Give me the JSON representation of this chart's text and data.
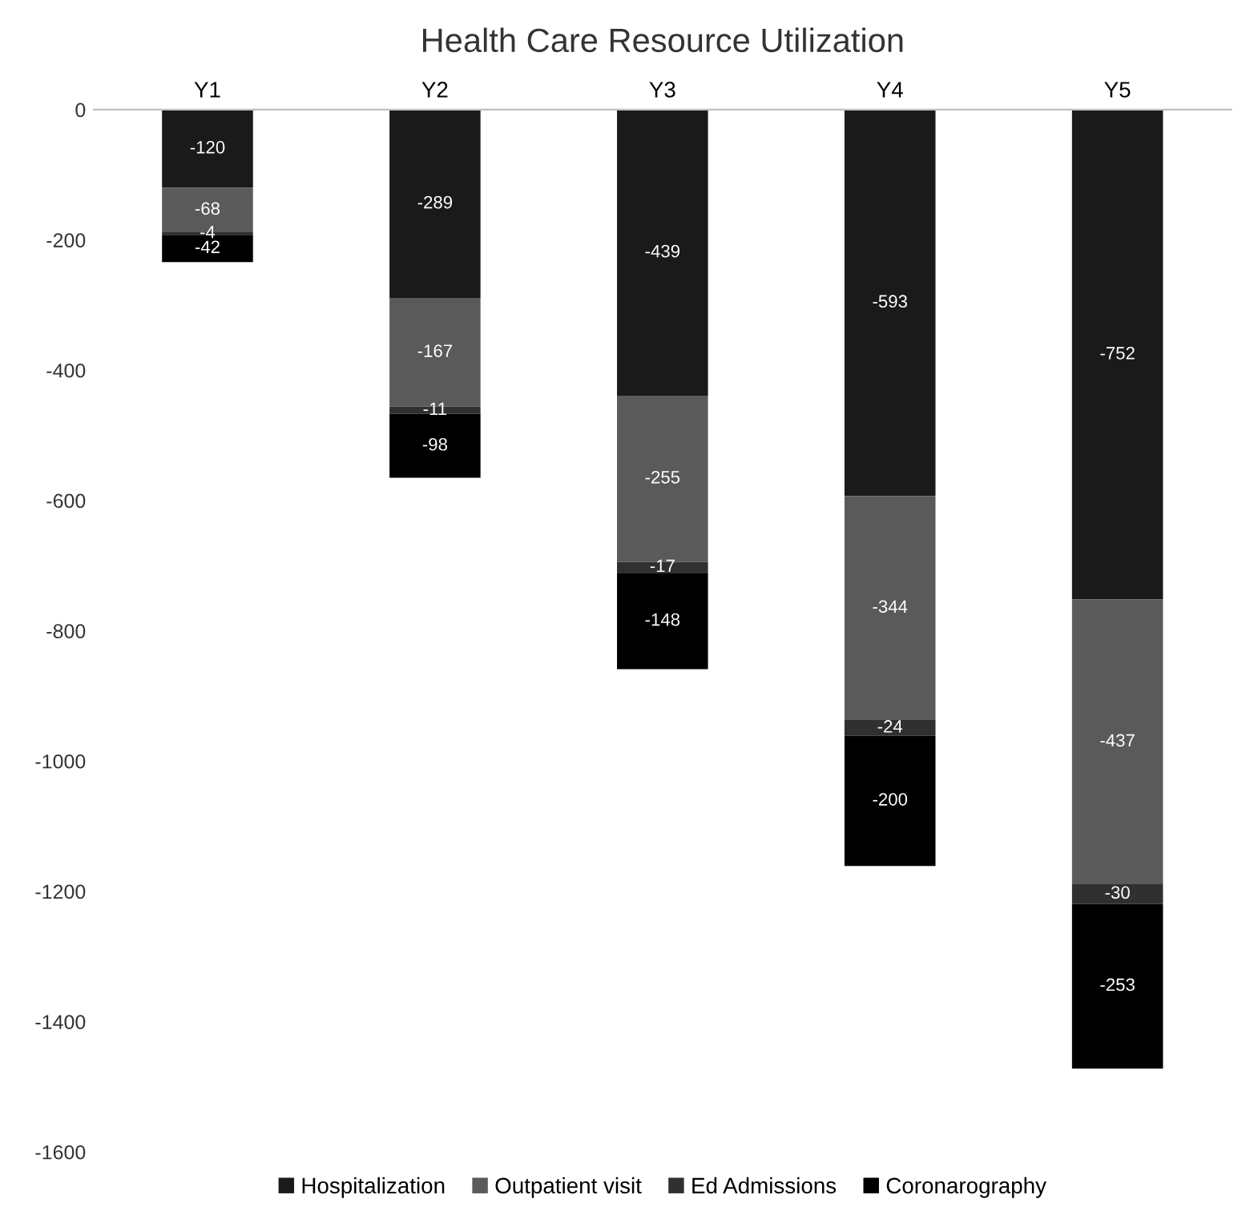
{
  "chart_data": {
    "type": "bar",
    "title": "Health Care Resource Utilization",
    "categories": [
      "Y1",
      "Y2",
      "Y3",
      "Y4",
      "Y5"
    ],
    "stacked": true,
    "series": [
      {
        "name": "Hospitalization",
        "color": "#1a1a1a",
        "values": [
          -120,
          -289,
          -439,
          -593,
          -752
        ]
      },
      {
        "name": "Outpatient visit",
        "color": "#5a5a5a",
        "values": [
          -68,
          -167,
          -255,
          -344,
          -437
        ]
      },
      {
        "name": "Ed Admissions",
        "color": "#303030",
        "values": [
          -4,
          -11,
          -17,
          -24,
          -30
        ]
      },
      {
        "name": "Coronarography",
        "color": "#000000",
        "values": [
          -42,
          -98,
          -148,
          -200,
          -253
        ]
      }
    ],
    "ylim": [
      -1600,
      0
    ],
    "yticks": [
      -1600,
      -1400,
      -1200,
      -1000,
      -800,
      -600,
      -400,
      -200,
      0
    ],
    "data_labels": true,
    "grid": false,
    "legend": "bottom"
  }
}
